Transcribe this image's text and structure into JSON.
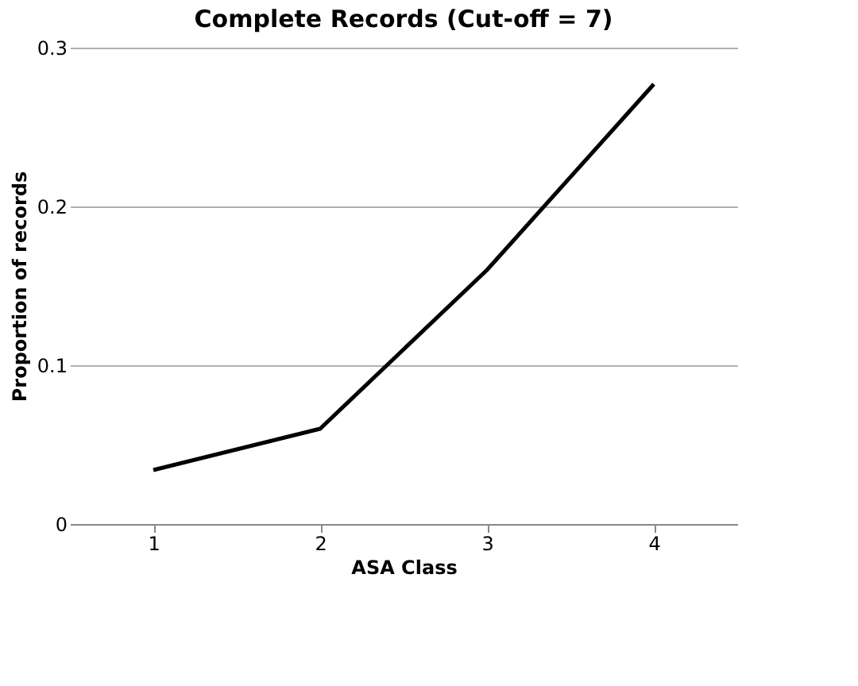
{
  "chart_data": {
    "type": "line",
    "title": "Complete Records (Cut-off = 7)",
    "xlabel": "ASA Class",
    "ylabel": "Proportion of records",
    "categories": [
      "1",
      "2",
      "3",
      "4"
    ],
    "series": [
      {
        "color": "#000000",
        "values": [
          0.034,
          0.06,
          0.16,
          0.277
        ]
      }
    ],
    "ylim": [
      0,
      0.3
    ],
    "yticks": [
      0,
      0.1,
      0.2,
      0.3
    ],
    "grid": "y",
    "legend": false,
    "marker": "none",
    "line_style": "solid"
  }
}
